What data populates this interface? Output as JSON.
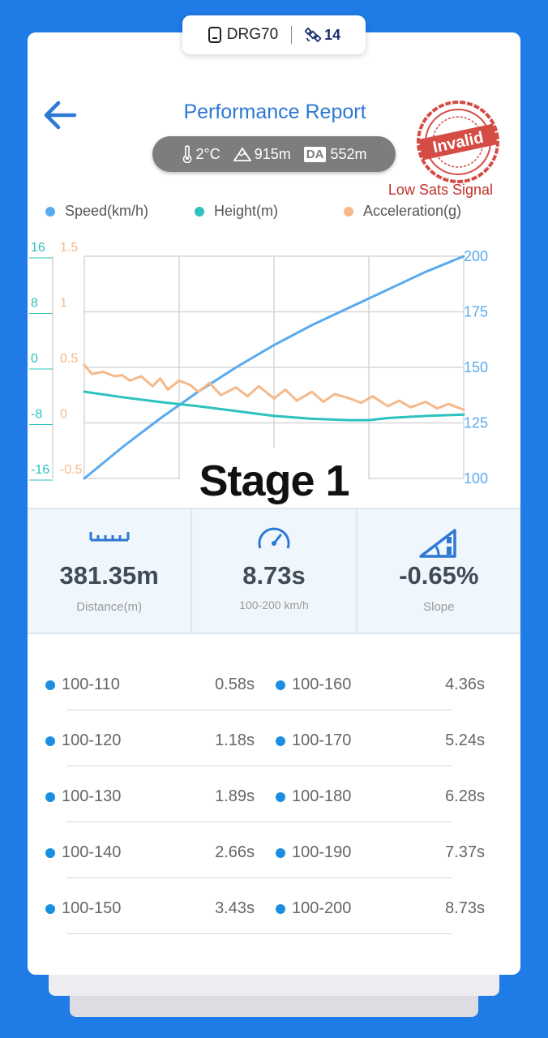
{
  "device": {
    "name": "DRG70",
    "satellites": "14"
  },
  "header": {
    "title": "Performance Report",
    "conditions": {
      "temperature": "2°C",
      "altitude": "915m",
      "da_label": "DA",
      "density_altitude": "552m"
    },
    "stamp": "Invalid",
    "warning": "Low Sats Signal"
  },
  "legend": [
    {
      "label": "Speed(km/h)",
      "color": "#5aaaf0"
    },
    {
      "label": "Height(m)",
      "color": "#2dc1c0"
    },
    {
      "label": "Acceleration(g)",
      "color": "#f5b98a"
    }
  ],
  "chart_data": {
    "type": "line",
    "x_grid_divisions": 4,
    "axes": {
      "height_left": {
        "ticks": [
          "16",
          "8",
          "0",
          "-8",
          "-16"
        ],
        "color": "#2dc1c0",
        "ylim": [
          -16,
          16
        ]
      },
      "acceleration_left": {
        "ticks": [
          "1.5",
          "1",
          "0.5",
          "0",
          "-0.5"
        ],
        "color": "#f5b98a",
        "ylim": [
          -0.5,
          1.5
        ]
      },
      "speed_right": {
        "ticks": [
          "200",
          "175",
          "150",
          "125",
          "100"
        ],
        "color": "#5aaaf0",
        "ylim": [
          100,
          200
        ]
      }
    },
    "series": [
      {
        "name": "Speed(km/h)",
        "axis": "speed_right",
        "color": "#5aaaf0",
        "x": [
          0,
          0.05,
          0.1,
          0.2,
          0.3,
          0.4,
          0.5,
          0.6,
          0.7,
          0.8,
          0.9,
          1.0
        ],
        "y": [
          100,
          107,
          114,
          127,
          139,
          150,
          160,
          169,
          177,
          185,
          193,
          200
        ]
      },
      {
        "name": "Height(m)",
        "axis": "height_left",
        "color": "#2dc1c0",
        "x": [
          0,
          0.1,
          0.2,
          0.3,
          0.4,
          0.5,
          0.6,
          0.7,
          0.75,
          0.8,
          0.9,
          1.0
        ],
        "y": [
          -3.5,
          -4.3,
          -5.0,
          -5.6,
          -6.3,
          -7.0,
          -7.4,
          -7.6,
          -7.6,
          -7.3,
          -7.0,
          -6.8
        ]
      },
      {
        "name": "Acceleration(g)",
        "axis": "acceleration_left",
        "color": "#f5b98a",
        "x": [
          0,
          0.02,
          0.05,
          0.08,
          0.1,
          0.12,
          0.15,
          0.18,
          0.2,
          0.22,
          0.25,
          0.28,
          0.3,
          0.33,
          0.36,
          0.4,
          0.43,
          0.46,
          0.5,
          0.53,
          0.56,
          0.6,
          0.63,
          0.66,
          0.7,
          0.73,
          0.76,
          0.8,
          0.83,
          0.86,
          0.9,
          0.93,
          0.96,
          1.0
        ],
        "y": [
          0.52,
          0.44,
          0.46,
          0.42,
          0.43,
          0.38,
          0.42,
          0.33,
          0.4,
          0.3,
          0.38,
          0.34,
          0.28,
          0.36,
          0.25,
          0.32,
          0.24,
          0.33,
          0.22,
          0.3,
          0.2,
          0.28,
          0.19,
          0.26,
          0.22,
          0.18,
          0.24,
          0.15,
          0.2,
          0.14,
          0.19,
          0.13,
          0.17,
          0.12
        ]
      }
    ]
  },
  "stage": "Stage 1",
  "stats": [
    {
      "value": "381.35m",
      "label": "Distance(m)",
      "icon": "ruler-icon"
    },
    {
      "value": "8.73s",
      "label": "100-200 km/h",
      "icon": "speedometer-icon"
    },
    {
      "value": "-0.65%",
      "label": "Slope",
      "icon": "slope-icon"
    }
  ],
  "splits": {
    "left": [
      {
        "range": "100-110",
        "time": "0.58s"
      },
      {
        "range": "100-120",
        "time": "1.18s"
      },
      {
        "range": "100-130",
        "time": "1.89s"
      },
      {
        "range": "100-140",
        "time": "2.66s"
      },
      {
        "range": "100-150",
        "time": "3.43s"
      }
    ],
    "right": [
      {
        "range": "100-160",
        "time": "4.36s"
      },
      {
        "range": "100-170",
        "time": "5.24s"
      },
      {
        "range": "100-180",
        "time": "6.28s"
      },
      {
        "range": "100-190",
        "time": "7.37s"
      },
      {
        "range": "100-200",
        "time": "8.73s"
      }
    ]
  }
}
